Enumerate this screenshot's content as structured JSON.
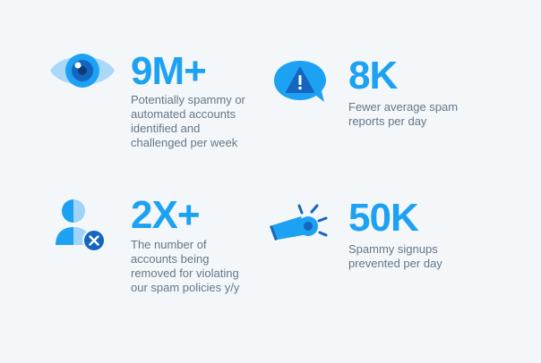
{
  "colors": {
    "background": "#f3f7fa",
    "accent": "#1da1f2",
    "dark_accent": "#1565c0",
    "light_accent": "#9fd3f7",
    "text": "#657786"
  },
  "stats": [
    {
      "icon": "eye-icon",
      "value": "9M+",
      "description_lines": [
        "Potentially spammy or",
        "automated accounts",
        "identified and",
        "challenged per week"
      ]
    },
    {
      "icon": "warning-speech-bubble-icon",
      "value": "8K",
      "description_lines": [
        "Fewer average spam",
        "reports per day"
      ]
    },
    {
      "icon": "user-removed-icon",
      "value": "2X+",
      "description_lines": [
        "The number of",
        "accounts being",
        "removed for violating",
        "our spam policies y/y"
      ]
    },
    {
      "icon": "whistle-icon",
      "value": "50K",
      "description_lines": [
        "Spammy signups",
        "prevented per day"
      ]
    }
  ]
}
